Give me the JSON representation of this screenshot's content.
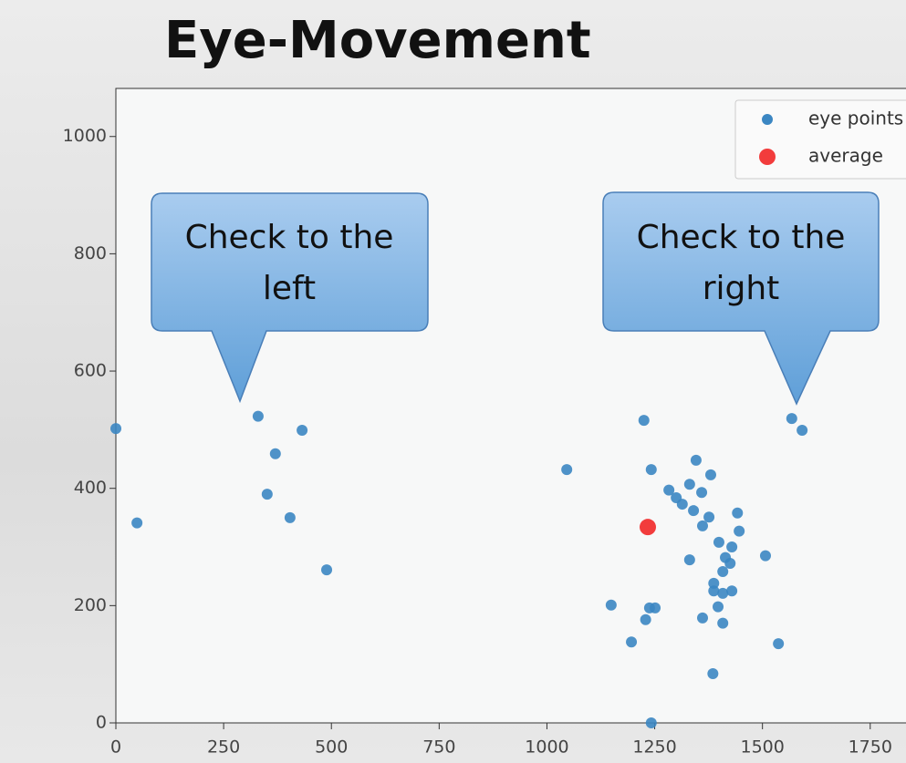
{
  "title": "Eye-Movement",
  "chart_data": {
    "type": "scatter",
    "series": [
      {
        "name": "eye points",
        "color": "#3b86c2",
        "x": [
          0,
          49,
          330,
          370,
          351,
          404,
          432,
          489,
          1046,
          1225,
          1242,
          1149,
          1196,
          1229,
          1238,
          1251,
          1242,
          1283,
          1300,
          1314,
          1331,
          1346,
          1359,
          1380,
          1340,
          1361,
          1376,
          1442,
          1446,
          1399,
          1429,
          1414,
          1425,
          1408,
          1331,
          1387,
          1387,
          1408,
          1429,
          1397,
          1361,
          1408,
          1385,
          1507,
          1537,
          1568,
          1592
        ],
        "values": [
          502,
          341,
          523,
          459,
          390,
          350,
          499,
          261,
          432,
          516,
          432,
          201,
          138,
          176,
          196,
          196,
          0,
          397,
          384,
          373,
          407,
          448,
          393,
          423,
          362,
          336,
          351,
          358,
          327,
          308,
          300,
          282,
          272,
          258,
          278,
          238,
          225,
          221,
          225,
          198,
          179,
          170,
          84,
          285,
          135,
          519,
          499
        ]
      },
      {
        "name": "average",
        "color": "#f23c3c",
        "x": [
          1234
        ],
        "values": [
          334
        ]
      }
    ],
    "xlim": [
      0,
      1833
    ],
    "ylim": [
      0,
      1082
    ],
    "xticks": [
      0,
      250,
      500,
      750,
      1000,
      1250,
      1500,
      1750
    ],
    "yticks": [
      0,
      200,
      400,
      600,
      800,
      1000
    ],
    "legend": "upper right",
    "annotations": [
      "Check to the left",
      "Check to the right"
    ]
  }
}
